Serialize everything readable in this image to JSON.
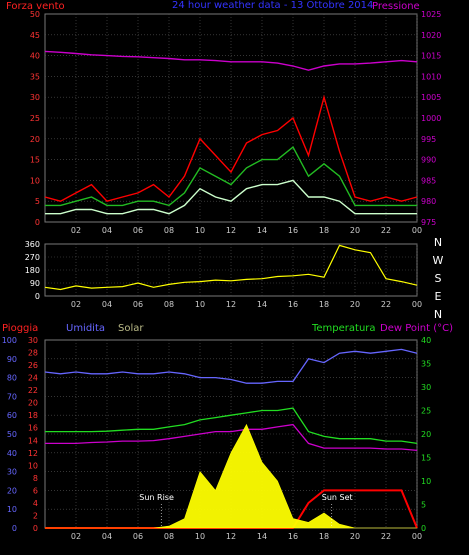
{
  "chart_data": [
    {
      "type": "line",
      "title": "24 hour weather data - 13 Ottobre 2014",
      "left_label": "Forza vento",
      "right_label": "Pressione",
      "x_ticks": [
        "02",
        "04",
        "06",
        "08",
        "10",
        "12",
        "14",
        "16",
        "18",
        "20",
        "22",
        "00"
      ],
      "y_left_ticks": [
        "0",
        "5",
        "10",
        "15",
        "20",
        "25",
        "30",
        "35",
        "40",
        "45",
        "50"
      ],
      "y_right_ticks": [
        "975",
        "980",
        "985",
        "990",
        "995",
        "1000",
        "1005",
        "1010",
        "1015",
        "1020",
        "1025"
      ],
      "ylim_left": [
        0,
        50
      ],
      "ylim_right": [
        975,
        1025
      ],
      "x_hours": [
        0,
        1,
        2,
        3,
        4,
        5,
        6,
        7,
        8,
        9,
        10,
        11,
        12,
        13,
        14,
        15,
        16,
        17,
        18,
        19,
        20,
        21,
        22,
        23,
        24
      ],
      "series": [
        {
          "key": "gust",
          "color": "#ff0000",
          "axis": "left",
          "values": [
            6,
            5,
            7,
            9,
            5,
            6,
            7,
            9,
            6,
            11,
            20,
            16,
            12,
            19,
            21,
            22,
            25,
            16,
            30,
            17,
            6,
            5,
            6,
            5,
            6
          ]
        },
        {
          "key": "wind_avg",
          "color": "#22bb22",
          "axis": "left",
          "values": [
            4,
            4,
            5,
            6,
            4,
            4,
            5,
            5,
            4,
            7,
            13,
            11,
            9,
            13,
            15,
            15,
            18,
            11,
            14,
            11,
            4,
            4,
            4,
            4,
            4
          ]
        },
        {
          "key": "wind_min",
          "color": "#ccffcc",
          "axis": "left",
          "values": [
            2,
            2,
            3,
            3,
            2,
            2,
            3,
            3,
            2,
            4,
            8,
            6,
            5,
            8,
            9,
            9,
            10,
            6,
            6,
            5,
            2,
            2,
            2,
            2,
            2
          ]
        },
        {
          "key": "pressure",
          "color": "#cc00cc",
          "axis": "right",
          "values": [
            1016,
            1015.8,
            1015.5,
            1015.2,
            1015,
            1014.8,
            1014.7,
            1014.5,
            1014.3,
            1014,
            1014,
            1013.8,
            1013.5,
            1013.5,
            1013.5,
            1013.2,
            1012.5,
            1011.5,
            1012.5,
            1013,
            1013,
            1013.2,
            1013.5,
            1013.8,
            1013.5
          ]
        }
      ]
    },
    {
      "type": "line",
      "right_labels": [
        "N",
        "W",
        "S",
        "E",
        "N"
      ],
      "y_ticks": [
        "0",
        "90",
        "180",
        "270",
        "360"
      ],
      "ylim": [
        0,
        360
      ],
      "x_ticks": [
        "02",
        "04",
        "06",
        "08",
        "10",
        "12",
        "14",
        "16",
        "18",
        "20",
        "22",
        "00"
      ],
      "x_hours": [
        0,
        1,
        2,
        3,
        4,
        5,
        6,
        7,
        8,
        9,
        10,
        11,
        12,
        13,
        14,
        15,
        16,
        17,
        18,
        19,
        20,
        21,
        22,
        23,
        24
      ],
      "series": [
        {
          "key": "wind_dir",
          "color": "#ffff00",
          "values": [
            60,
            45,
            70,
            55,
            60,
            65,
            90,
            60,
            80,
            95,
            100,
            110,
            105,
            115,
            120,
            135,
            140,
            150,
            130,
            350,
            320,
            300,
            120,
            100,
            75
          ]
        }
      ]
    },
    {
      "type": "line",
      "labels": {
        "rain": "Pioggia",
        "humidity": "Umidita",
        "solar": "Solar",
        "temperature": "Temperatura",
        "dewpoint": "Dew Point (°C)"
      },
      "annotations": {
        "sunrise": "Sun Rise",
        "sunset": "Sun Set"
      },
      "y_humidity_ticks": [
        "0",
        "10",
        "20",
        "30",
        "40",
        "50",
        "60",
        "70",
        "80",
        "90",
        "100"
      ],
      "y_rain_ticks": [
        "0",
        "2",
        "4",
        "6",
        "8",
        "10",
        "12",
        "14",
        "16",
        "18",
        "20",
        "22",
        "24",
        "26",
        "28",
        "30"
      ],
      "y_temp_ticks": [
        "0",
        "5",
        "10",
        "15",
        "20",
        "25",
        "30",
        "35",
        "40"
      ],
      "ylim_humidity": [
        0,
        100
      ],
      "ylim_rain": [
        0,
        30
      ],
      "ylim_temp": [
        0,
        40
      ],
      "ylim_solar": [
        0,
        100
      ],
      "x_ticks": [
        "02",
        "04",
        "06",
        "08",
        "10",
        "12",
        "14",
        "16",
        "18",
        "20",
        "22",
        "00"
      ],
      "x_hours": [
        0,
        1,
        2,
        3,
        4,
        5,
        6,
        7,
        8,
        9,
        10,
        11,
        12,
        13,
        14,
        15,
        16,
        17,
        18,
        19,
        20,
        21,
        22,
        23,
        24
      ],
      "sunrise_hour": 7.5,
      "sunset_hour": 18.5,
      "series": [
        {
          "key": "humidity",
          "color": "#6666ff",
          "axis": "humidity",
          "values": [
            83,
            82,
            83,
            82,
            82,
            83,
            82,
            82,
            83,
            82,
            80,
            80,
            79,
            77,
            77,
            78,
            78,
            90,
            88,
            93,
            94,
            93,
            94,
            95,
            93
          ]
        },
        {
          "key": "temperature",
          "color": "#22dd22",
          "axis": "temp",
          "values": [
            20.5,
            20.5,
            20.5,
            20.5,
            20.6,
            20.8,
            21,
            21,
            21.5,
            22,
            23,
            23.5,
            24,
            24.5,
            25,
            25,
            25.5,
            20.5,
            19.5,
            19,
            19,
            19,
            18.5,
            18.5,
            18
          ]
        },
        {
          "key": "dewpoint",
          "color": "#cc00cc",
          "axis": "temp",
          "values": [
            18,
            18,
            18,
            18.2,
            18.3,
            18.5,
            18.5,
            18.6,
            19,
            19.5,
            20,
            20.5,
            20.5,
            21,
            21,
            21.5,
            22,
            18,
            17,
            17,
            17,
            17,
            16.8,
            16.8,
            16.5
          ]
        },
        {
          "key": "rain",
          "color": "#ff0000",
          "axis": "rain",
          "values": [
            0,
            0,
            0,
            0,
            0,
            0,
            0,
            0,
            0,
            0,
            0,
            0,
            0,
            0,
            0,
            0,
            0,
            4,
            6,
            6,
            6,
            6,
            6,
            6,
            0
          ]
        },
        {
          "key": "solar",
          "color": "#ffff00",
          "axis": "solar",
          "fill": true,
          "values": [
            0,
            0,
            0,
            0,
            0,
            0,
            0,
            0,
            1,
            5,
            30,
            20,
            40,
            55,
            35,
            25,
            5,
            3,
            8,
            2,
            0,
            0,
            0,
            0,
            0
          ]
        }
      ]
    }
  ]
}
